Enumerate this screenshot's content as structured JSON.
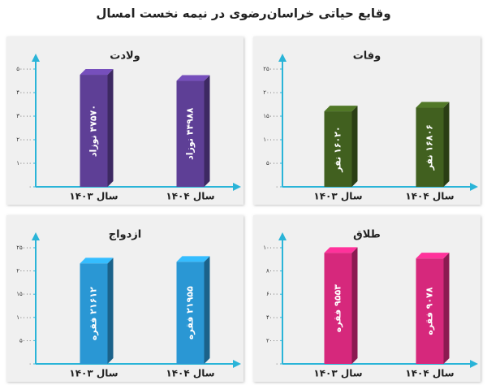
{
  "title": "وقایع حیاتی خراسان‌رضوی در نیمه نخست امسال",
  "chart_data": [
    {
      "type": "bar",
      "title": "ولادت",
      "categories": [
        "سال ۱۴۰۳",
        "سال ۱۴۰۴"
      ],
      "values": [
        47570,
        44988
      ],
      "value_labels": [
        "۴۷۵۷۰ نوزاد",
        "۴۴۹۸۸ نوزاد"
      ],
      "color": "#5e3f96",
      "ylim": [
        0,
        50000
      ],
      "yticks": [
        {
          "value": 0,
          "label": "۰"
        },
        {
          "value": 10000,
          "label": "۱۰۰۰۰"
        },
        {
          "value": 20000,
          "label": "۲۰۰۰۰"
        },
        {
          "value": 30000,
          "label": "۳۰۰۰۰"
        },
        {
          "value": 40000,
          "label": "۴۰۰۰۰"
        },
        {
          "value": 50000,
          "label": "۵۰۰۰۰"
        }
      ]
    },
    {
      "type": "bar",
      "title": "وفات",
      "categories": [
        "سال ۱۴۰۳",
        "سال ۱۴۰۴"
      ],
      "values": [
        16020,
        16806
      ],
      "value_labels": [
        "۱۶۰۲۰ نفر",
        "۱۶۸۰۶ نفر"
      ],
      "color": "#41601f",
      "ylim": [
        0,
        25000
      ],
      "yticks": [
        {
          "value": 0,
          "label": "۰"
        },
        {
          "value": 5000,
          "label": "۵۰۰۰"
        },
        {
          "value": 10000,
          "label": "۱۰۰۰۰"
        },
        {
          "value": 15000,
          "label": "۱۵۰۰۰"
        },
        {
          "value": 20000,
          "label": "۲۰۰۰۰"
        },
        {
          "value": 25000,
          "label": "۲۵۰۰۰"
        }
      ]
    },
    {
      "type": "bar",
      "title": "ازدواج",
      "categories": [
        "سال ۱۴۰۳",
        "سال ۱۴۰۴"
      ],
      "values": [
        21612,
        21955
      ],
      "value_labels": [
        "۲۱۶۱۲ فقره",
        "۲۱۹۵۵ فقره"
      ],
      "color": "#2a97d4",
      "ylim": [
        0,
        25000
      ],
      "yticks": [
        {
          "value": 0,
          "label": "۰"
        },
        {
          "value": 5000,
          "label": "۵۰۰۰"
        },
        {
          "value": 10000,
          "label": "۱۰۰۰۰"
        },
        {
          "value": 15000,
          "label": "۱۵۰۰۰"
        },
        {
          "value": 20000,
          "label": "۲۰۰۰۰"
        },
        {
          "value": 25000,
          "label": "۲۵۰۰۰"
        }
      ]
    },
    {
      "type": "bar",
      "title": "طلاق",
      "categories": [
        "سال ۱۴۰۳",
        "سال ۱۴۰۴"
      ],
      "values": [
        9553,
        9078
      ],
      "value_labels": [
        "۹۵۵۳ فقره",
        "۹۰۷۸ فقره"
      ],
      "color": "#d6287c",
      "ylim": [
        0,
        10000
      ],
      "yticks": [
        {
          "value": 0,
          "label": "۰"
        },
        {
          "value": 2000,
          "label": "۲۰۰۰"
        },
        {
          "value": 4000,
          "label": "۴۰۰۰"
        },
        {
          "value": 6000,
          "label": "۶۰۰۰"
        },
        {
          "value": 8000,
          "label": "۸۰۰۰"
        },
        {
          "value": 10000,
          "label": "۱۰۰۰۰"
        }
      ]
    }
  ]
}
